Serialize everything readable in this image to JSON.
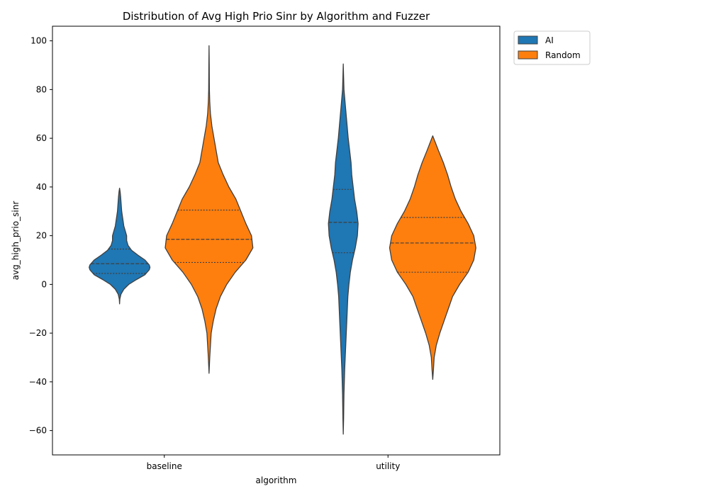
{
  "chart_data": {
    "type": "violin",
    "title": "Distribution of Avg High Prio Sinr by Algorithm and Fuzzer",
    "xlabel": "algorithm",
    "ylabel": "avg_high_prio_sinr",
    "categories": [
      "baseline",
      "utility"
    ],
    "ylim": [
      -70,
      106
    ],
    "yticks": [
      -60,
      -40,
      -20,
      0,
      20,
      40,
      60,
      80,
      100
    ],
    "grid": false,
    "legend": {
      "placement": "upper-right-outside"
    },
    "series": [
      {
        "name": "AI",
        "color": "#1f77b4",
        "violins": [
          {
            "category": "baseline",
            "min": -8,
            "max": 39.5,
            "q1": 4.5,
            "median": 8.5,
            "q3": 14.5,
            "profile": [
              [
                -8,
                0
              ],
              [
                -6,
                0.4
              ],
              [
                -4,
                2
              ],
              [
                -2,
                6
              ],
              [
                0,
                13
              ],
              [
                2,
                24
              ],
              [
                4,
                36
              ],
              [
                6,
                42
              ],
              [
                7,
                43
              ],
              [
                8,
                42
              ],
              [
                10,
                36
              ],
              [
                12,
                26
              ],
              [
                14,
                17
              ],
              [
                16,
                12
              ],
              [
                18,
                10
              ],
              [
                20,
                10
              ],
              [
                22,
                8
              ],
              [
                24,
                6
              ],
              [
                26,
                5
              ],
              [
                28,
                4
              ],
              [
                30,
                3
              ],
              [
                32,
                2.5
              ],
              [
                34,
                2
              ],
              [
                36,
                1.5
              ],
              [
                38,
                0.8
              ],
              [
                39.5,
                0
              ]
            ]
          },
          {
            "category": "utility",
            "min": -61.5,
            "max": 90.5,
            "q1": 13,
            "median": 25.5,
            "q3": 39,
            "profile": [
              [
                -61.5,
                0
              ],
              [
                -55,
                0.5
              ],
              [
                -45,
                1
              ],
              [
                -35,
                2
              ],
              [
                -25,
                3.5
              ],
              [
                -15,
                5
              ],
              [
                -5,
                6.5
              ],
              [
                0,
                8
              ],
              [
                5,
                10
              ],
              [
                10,
                13
              ],
              [
                15,
                17
              ],
              [
                20,
                20
              ],
              [
                25,
                21
              ],
              [
                30,
                19
              ],
              [
                35,
                16
              ],
              [
                40,
                14
              ],
              [
                45,
                12
              ],
              [
                50,
                11
              ],
              [
                55,
                9
              ],
              [
                60,
                7
              ],
              [
                65,
                5.5
              ],
              [
                70,
                4
              ],
              [
                75,
                2.5
              ],
              [
                80,
                1
              ],
              [
                85,
                0.5
              ],
              [
                90.5,
                0
              ]
            ]
          }
        ]
      },
      {
        "name": "Random",
        "color": "#ff7f0e",
        "violins": [
          {
            "category": "baseline",
            "min": -36.5,
            "max": 98,
            "q1": 9,
            "median": 18.5,
            "q3": 30.5,
            "profile": [
              [
                -36.5,
                0
              ],
              [
                -30,
                1
              ],
              [
                -20,
                3
              ],
              [
                -15,
                6
              ],
              [
                -10,
                10
              ],
              [
                -5,
                16
              ],
              [
                0,
                25
              ],
              [
                5,
                37
              ],
              [
                10,
                52
              ],
              [
                15,
                62
              ],
              [
                20,
                60
              ],
              [
                25,
                52
              ],
              [
                30,
                45
              ],
              [
                35,
                38
              ],
              [
                40,
                28
              ],
              [
                45,
                20
              ],
              [
                50,
                13
              ],
              [
                55,
                10
              ],
              [
                60,
                7
              ],
              [
                65,
                4
              ],
              [
                70,
                2
              ],
              [
                75,
                1
              ],
              [
                80,
                0.5
              ],
              [
                90,
                0.3
              ],
              [
                98,
                0
              ]
            ]
          },
          {
            "category": "utility",
            "min": -39,
            "max": 61,
            "q1": 5,
            "median": 17,
            "q3": 27.5,
            "profile": [
              [
                -39,
                0
              ],
              [
                -35,
                1
              ],
              [
                -30,
                2
              ],
              [
                -25,
                5
              ],
              [
                -20,
                10
              ],
              [
                -15,
                16
              ],
              [
                -10,
                22
              ],
              [
                -5,
                28
              ],
              [
                0,
                38
              ],
              [
                5,
                50
              ],
              [
                10,
                58
              ],
              [
                15,
                61
              ],
              [
                20,
                58
              ],
              [
                25,
                50
              ],
              [
                30,
                40
              ],
              [
                35,
                32
              ],
              [
                40,
                26
              ],
              [
                45,
                21
              ],
              [
                50,
                15
              ],
              [
                55,
                8
              ],
              [
                58,
                4
              ],
              [
                61,
                0
              ]
            ]
          }
        ]
      }
    ]
  }
}
